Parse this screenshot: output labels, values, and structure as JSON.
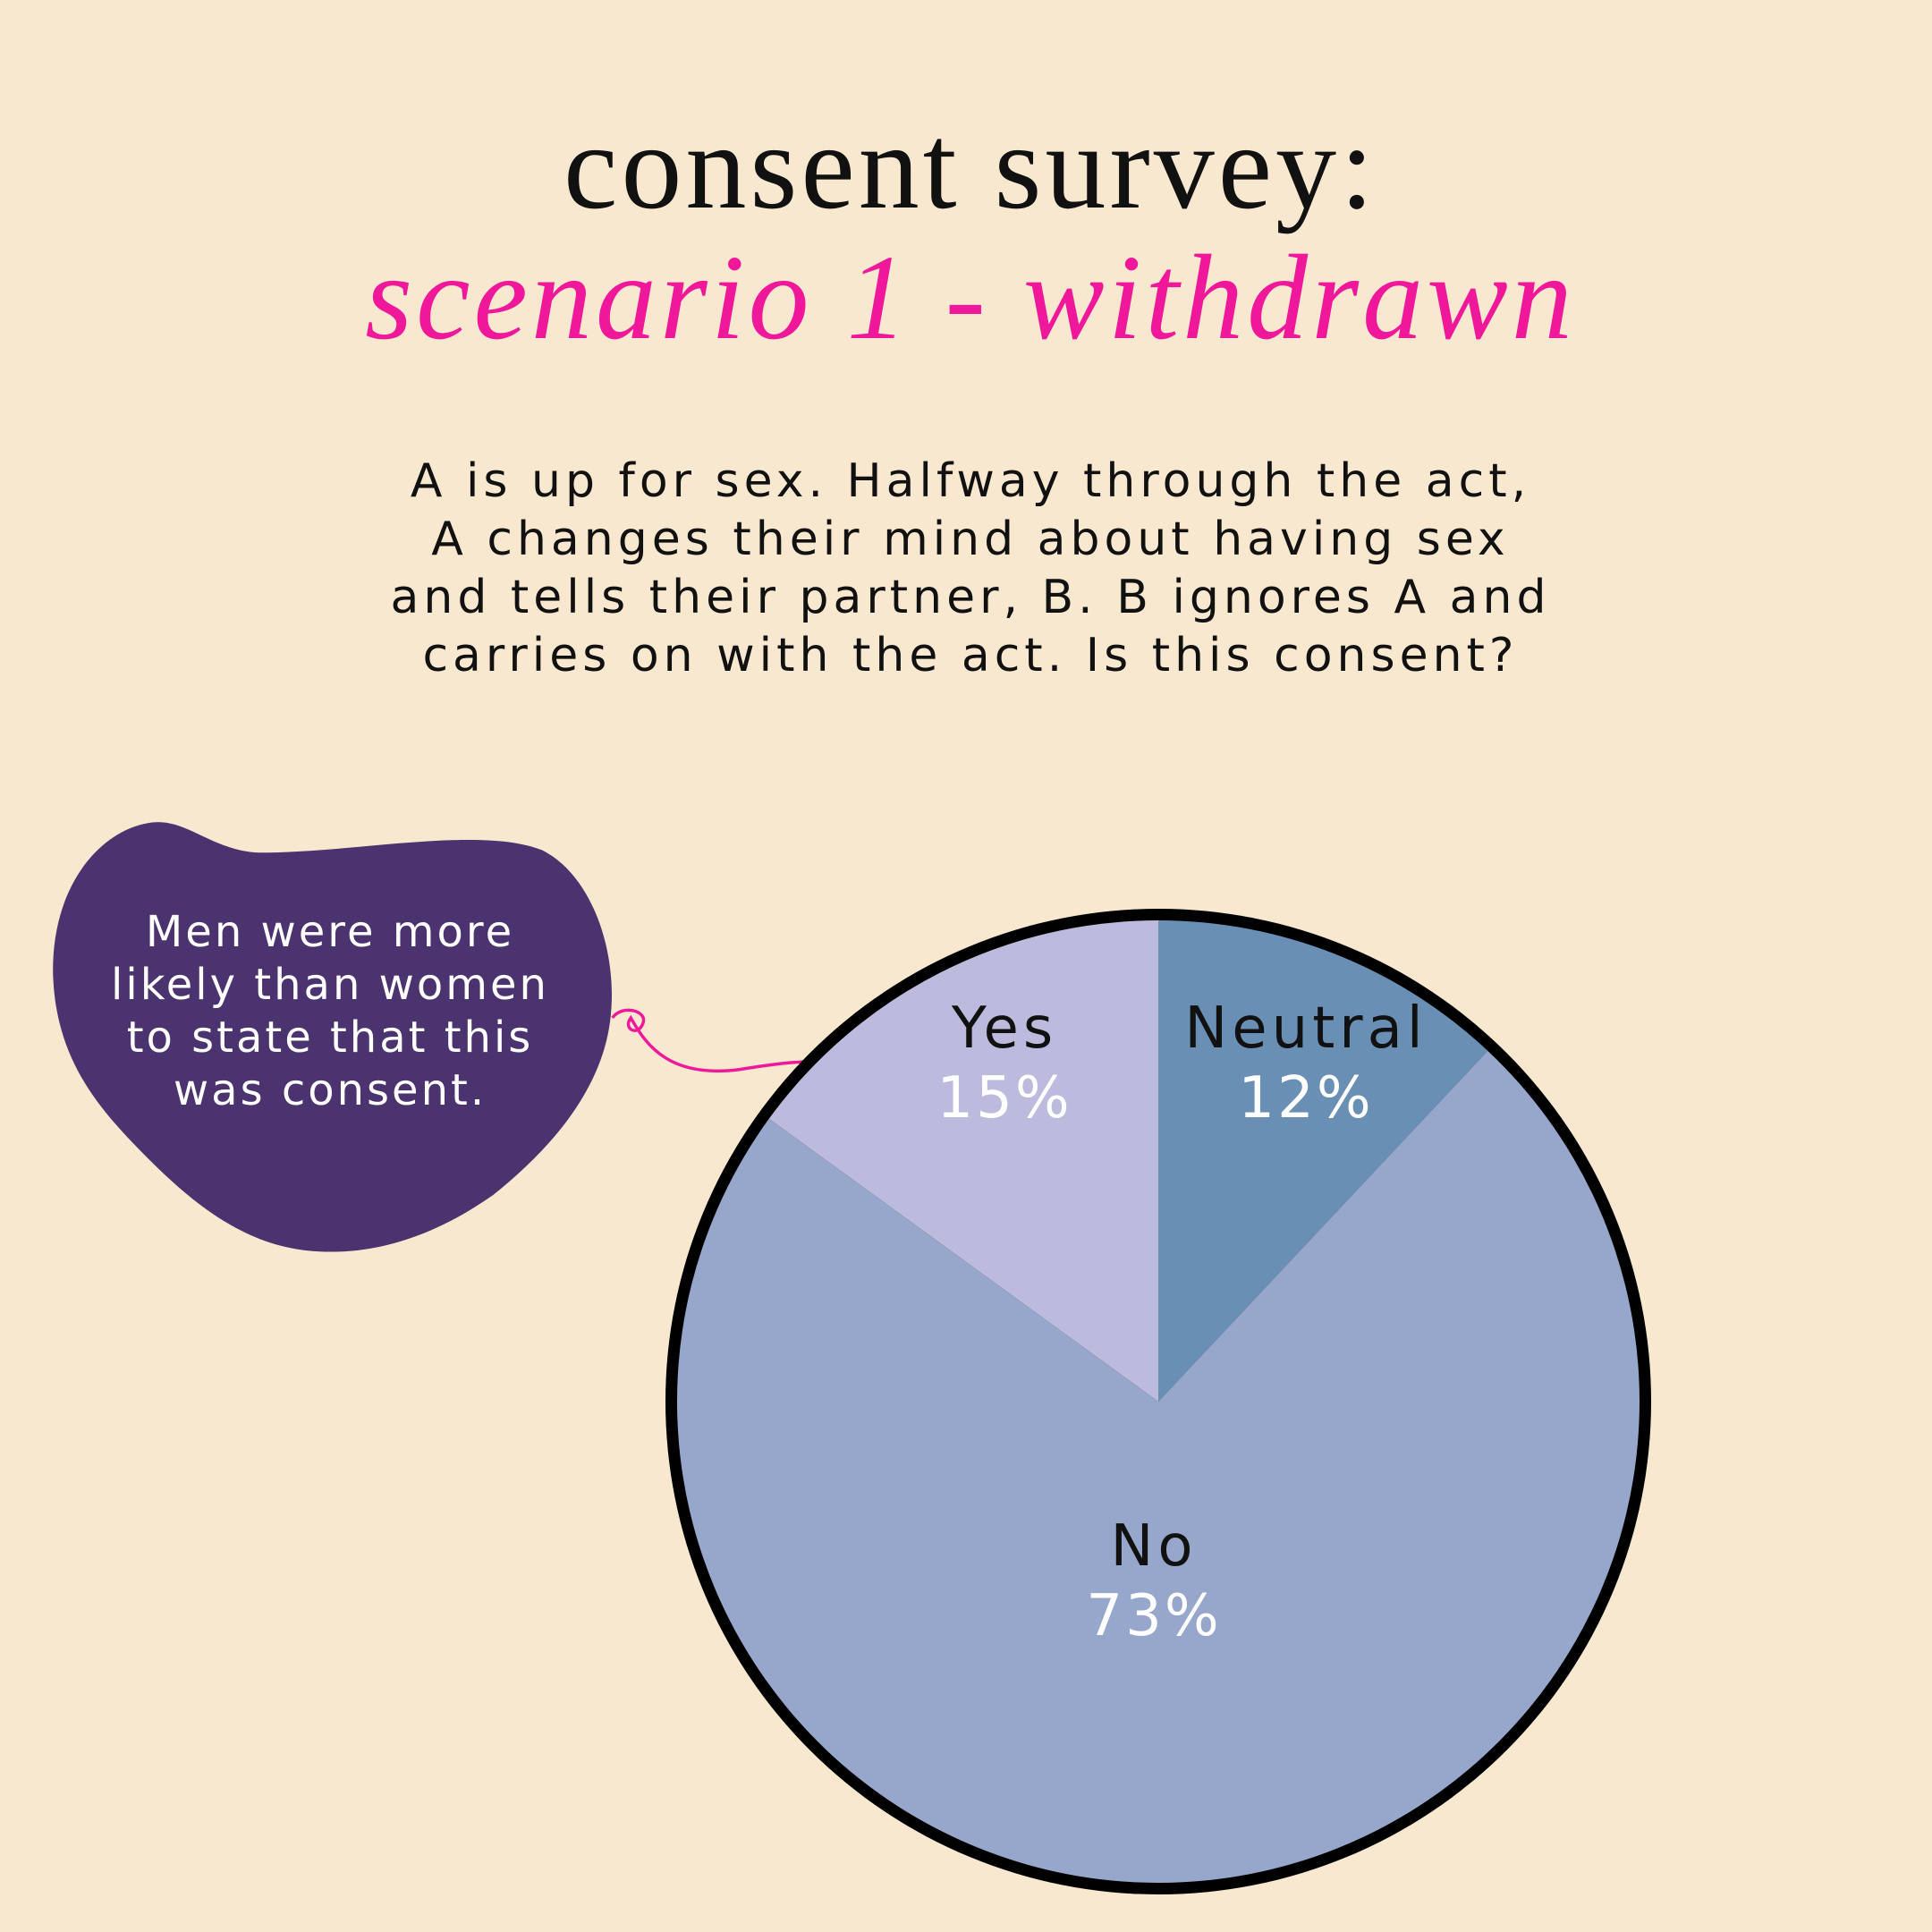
{
  "chart_data": {
    "type": "pie",
    "title": "consent survey:",
    "subtitle": "scenario 1 - withdrawn",
    "question": [
      "A is up for sex. Halfway through the act,",
      "A changes their mind about having sex",
      "and tells their partner, B. B ignores A and",
      "carries on with the act. Is this consent?"
    ],
    "annotation": [
      "Men were more",
      "likely than women",
      "to state that this",
      "was consent."
    ],
    "categories": [
      "Neutral",
      "No",
      "Yes"
    ],
    "values": [
      12,
      73,
      15
    ],
    "value_labels": [
      "12%",
      "73%",
      "15%"
    ],
    "colors": [
      "#6a8fb4",
      "#97a7cc",
      "#bcbbdd"
    ]
  }
}
